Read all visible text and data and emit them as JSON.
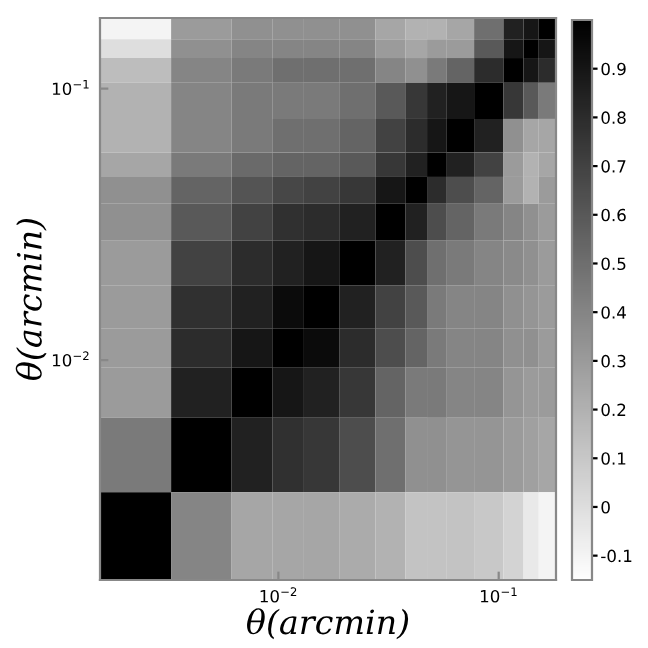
{
  "chart_data": {
    "type": "heatmap",
    "xlabel": "θ(arcmin)",
    "ylabel": "θ(arcmin)",
    "x": [
      0.00226,
      0.0047,
      0.008,
      0.011,
      0.0155,
      0.023,
      0.033,
      0.043,
      0.052,
      0.065,
      0.092,
      0.12,
      0.14,
      0.165
    ],
    "y": [
      0.165,
      0.14,
      0.12,
      0.092,
      0.065,
      0.052,
      0.043,
      0.033,
      0.023,
      0.0155,
      0.011,
      0.008,
      0.0047,
      0.00226
    ],
    "log": "xy",
    "xlim": [
      0.00155,
      0.182
    ],
    "ylim": [
      0.00155,
      0.182
    ],
    "xticks": [
      {
        "value": 0.01,
        "label": "10$^{−2}$"
      },
      {
        "value": 0.1,
        "label": "10$^{−1}$"
      }
    ],
    "yticks": [
      {
        "value": 0.01,
        "label": "10$^{−2}$"
      },
      {
        "value": 0.1,
        "label": "10$^{−1}$"
      }
    ],
    "clim": [
      -0.15,
      1.0
    ],
    "cticks": [
      -0.1,
      0,
      0.1,
      0.2,
      0.3,
      0.4,
      0.5,
      0.6,
      0.7,
      0.8,
      0.9
    ],
    "cells": [
      [
        -0.1,
        0.3,
        0.35,
        0.35,
        0.35,
        0.35,
        0.25,
        0.2,
        0.2,
        0.25,
        0.5,
        0.85,
        0.9,
        1.0
      ],
      [
        0.0,
        0.35,
        0.4,
        0.4,
        0.4,
        0.4,
        0.3,
        0.25,
        0.3,
        0.3,
        0.6,
        0.9,
        1.0,
        0.9
      ],
      [
        0.15,
        0.4,
        0.45,
        0.5,
        0.5,
        0.5,
        0.4,
        0.35,
        0.45,
        0.55,
        0.8,
        1.0,
        0.9,
        0.8
      ],
      [
        0.2,
        0.4,
        0.45,
        0.45,
        0.45,
        0.5,
        0.6,
        0.75,
        0.85,
        0.9,
        1.0,
        0.75,
        0.6,
        0.45
      ],
      [
        0.2,
        0.4,
        0.45,
        0.5,
        0.5,
        0.55,
        0.7,
        0.8,
        0.9,
        1.0,
        0.85,
        0.35,
        0.25,
        0.25
      ],
      [
        0.25,
        0.45,
        0.52,
        0.55,
        0.55,
        0.6,
        0.75,
        0.85,
        1.0,
        0.85,
        0.7,
        0.3,
        0.2,
        0.25
      ],
      [
        0.35,
        0.55,
        0.62,
        0.68,
        0.7,
        0.75,
        0.9,
        1.0,
        0.8,
        0.65,
        0.55,
        0.3,
        0.2,
        0.3
      ],
      [
        0.35,
        0.6,
        0.7,
        0.78,
        0.8,
        0.85,
        1.0,
        0.85,
        0.65,
        0.55,
        0.45,
        0.4,
        0.35,
        0.3
      ],
      [
        0.3,
        0.7,
        0.8,
        0.85,
        0.9,
        1.0,
        0.85,
        0.65,
        0.5,
        0.45,
        0.4,
        0.38,
        0.35,
        0.3
      ],
      [
        0.3,
        0.78,
        0.85,
        0.95,
        1.0,
        0.85,
        0.7,
        0.6,
        0.45,
        0.4,
        0.4,
        0.35,
        0.33,
        0.3
      ],
      [
        0.3,
        0.8,
        0.9,
        1.0,
        0.95,
        0.8,
        0.65,
        0.55,
        0.45,
        0.4,
        0.4,
        0.35,
        0.35,
        0.3
      ],
      [
        0.3,
        0.85,
        1.0,
        0.9,
        0.85,
        0.75,
        0.55,
        0.45,
        0.45,
        0.4,
        0.4,
        0.33,
        0.3,
        0.3
      ],
      [
        0.45,
        1.0,
        0.85,
        0.78,
        0.75,
        0.65,
        0.5,
        0.35,
        0.35,
        0.33,
        0.33,
        0.3,
        0.28,
        0.25
      ],
      [
        1.0,
        0.4,
        0.25,
        0.25,
        0.25,
        0.23,
        0.2,
        0.12,
        0.12,
        0.12,
        0.1,
        0.05,
        -0.05,
        -0.1
      ]
    ]
  }
}
